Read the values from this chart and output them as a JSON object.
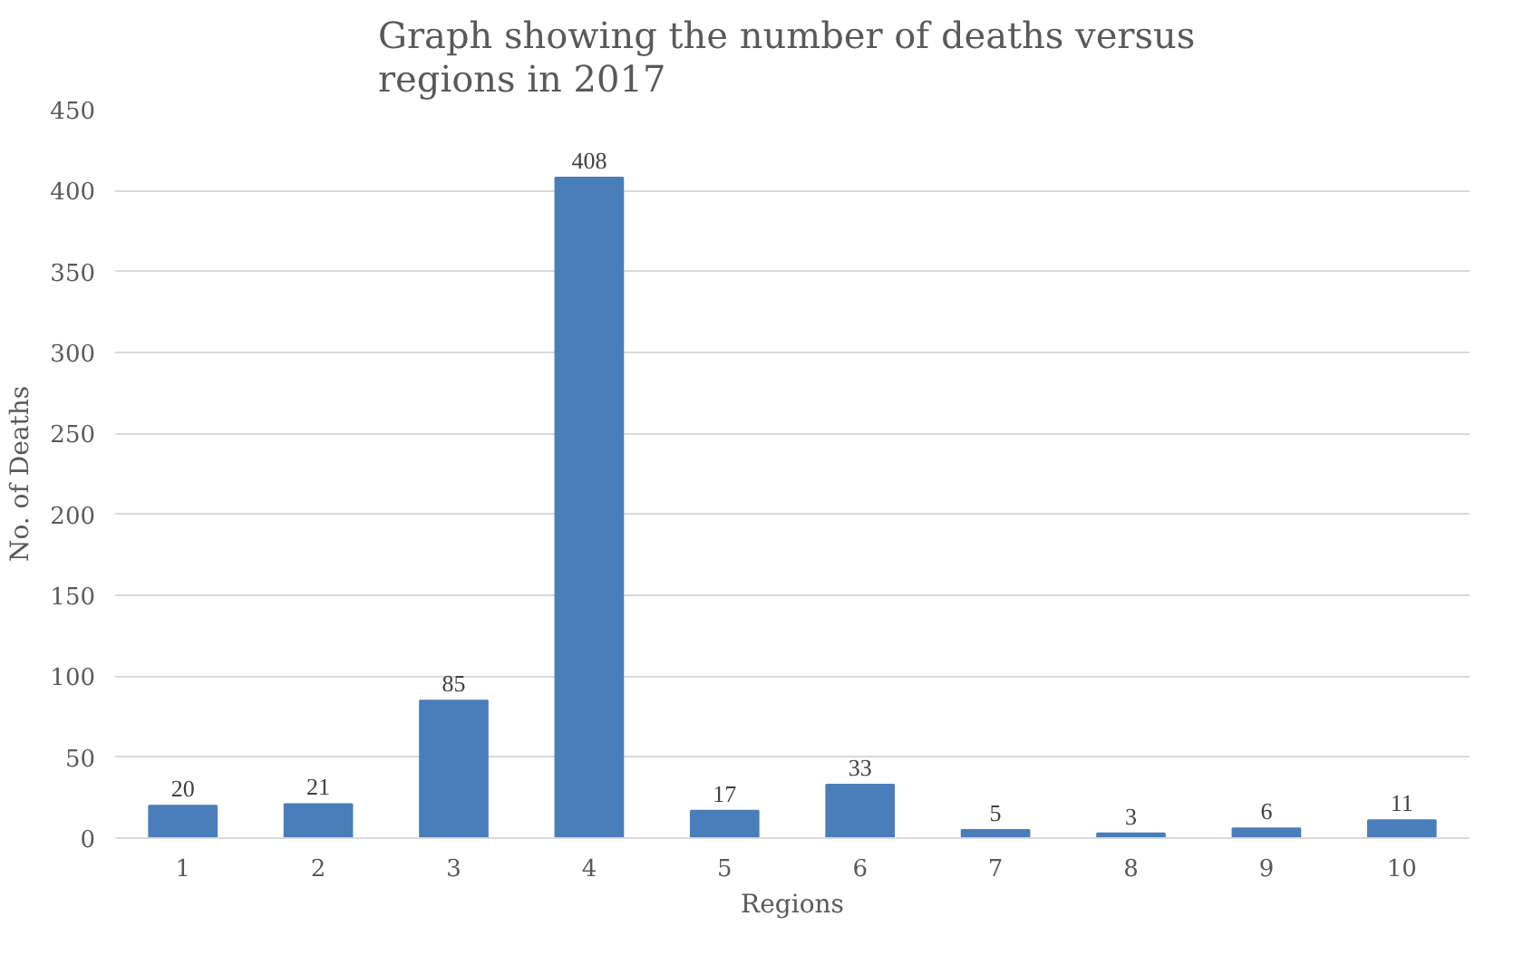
{
  "chart_data": {
    "type": "bar",
    "title": "Graph  showing the number of deaths versus\nregions in 2017",
    "xlabel": "Regions",
    "ylabel": "No. of Deaths",
    "categories": [
      "1",
      "2",
      "3",
      "4",
      "5",
      "6",
      "7",
      "8",
      "9",
      "10"
    ],
    "values": [
      20,
      21,
      85,
      408,
      17,
      33,
      5,
      3,
      6,
      11
    ],
    "color": "#4a7ebb",
    "ylim": [
      0,
      450
    ],
    "yticks": [
      0,
      50,
      100,
      150,
      200,
      250,
      300,
      350,
      400,
      450
    ],
    "grid": "y",
    "data_labels": true
  }
}
